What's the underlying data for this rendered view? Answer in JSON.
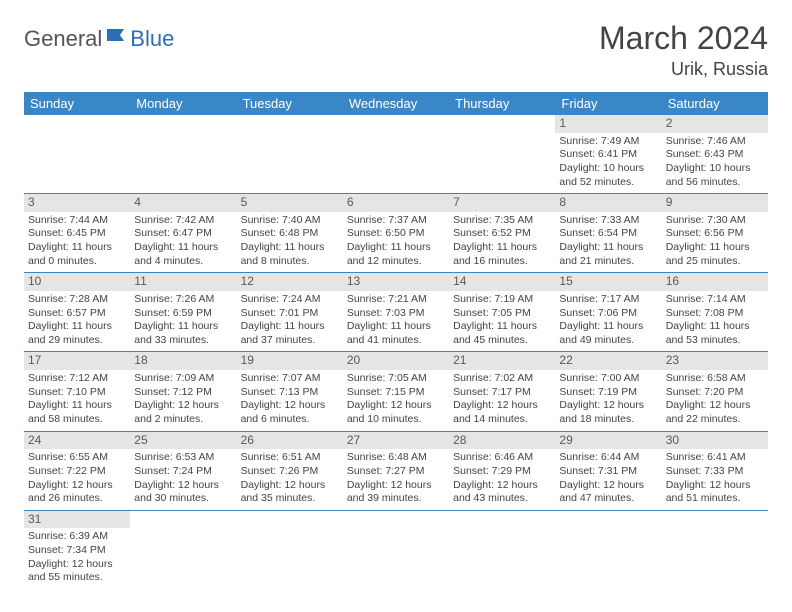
{
  "logo": {
    "text1": "General",
    "text2": "Blue"
  },
  "title": "March 2024",
  "location": "Urik, Russia",
  "colors": {
    "header_bg": "#3a87c7",
    "header_text": "#ffffff",
    "daynum_bg": "#e5e5e5",
    "row_divider": "#3a87c7",
    "logo_blue": "#2c6fb5"
  },
  "weekdays": [
    "Sunday",
    "Monday",
    "Tuesday",
    "Wednesday",
    "Thursday",
    "Friday",
    "Saturday"
  ],
  "weeks": [
    [
      null,
      null,
      null,
      null,
      null,
      {
        "n": "1",
        "sr": "Sunrise: 7:49 AM",
        "ss": "Sunset: 6:41 PM",
        "dl": "Daylight: 10 hours and 52 minutes."
      },
      {
        "n": "2",
        "sr": "Sunrise: 7:46 AM",
        "ss": "Sunset: 6:43 PM",
        "dl": "Daylight: 10 hours and 56 minutes."
      }
    ],
    [
      {
        "n": "3",
        "sr": "Sunrise: 7:44 AM",
        "ss": "Sunset: 6:45 PM",
        "dl": "Daylight: 11 hours and 0 minutes."
      },
      {
        "n": "4",
        "sr": "Sunrise: 7:42 AM",
        "ss": "Sunset: 6:47 PM",
        "dl": "Daylight: 11 hours and 4 minutes."
      },
      {
        "n": "5",
        "sr": "Sunrise: 7:40 AM",
        "ss": "Sunset: 6:48 PM",
        "dl": "Daylight: 11 hours and 8 minutes."
      },
      {
        "n": "6",
        "sr": "Sunrise: 7:37 AM",
        "ss": "Sunset: 6:50 PM",
        "dl": "Daylight: 11 hours and 12 minutes."
      },
      {
        "n": "7",
        "sr": "Sunrise: 7:35 AM",
        "ss": "Sunset: 6:52 PM",
        "dl": "Daylight: 11 hours and 16 minutes."
      },
      {
        "n": "8",
        "sr": "Sunrise: 7:33 AM",
        "ss": "Sunset: 6:54 PM",
        "dl": "Daylight: 11 hours and 21 minutes."
      },
      {
        "n": "9",
        "sr": "Sunrise: 7:30 AM",
        "ss": "Sunset: 6:56 PM",
        "dl": "Daylight: 11 hours and 25 minutes."
      }
    ],
    [
      {
        "n": "10",
        "sr": "Sunrise: 7:28 AM",
        "ss": "Sunset: 6:57 PM",
        "dl": "Daylight: 11 hours and 29 minutes."
      },
      {
        "n": "11",
        "sr": "Sunrise: 7:26 AM",
        "ss": "Sunset: 6:59 PM",
        "dl": "Daylight: 11 hours and 33 minutes."
      },
      {
        "n": "12",
        "sr": "Sunrise: 7:24 AM",
        "ss": "Sunset: 7:01 PM",
        "dl": "Daylight: 11 hours and 37 minutes."
      },
      {
        "n": "13",
        "sr": "Sunrise: 7:21 AM",
        "ss": "Sunset: 7:03 PM",
        "dl": "Daylight: 11 hours and 41 minutes."
      },
      {
        "n": "14",
        "sr": "Sunrise: 7:19 AM",
        "ss": "Sunset: 7:05 PM",
        "dl": "Daylight: 11 hours and 45 minutes."
      },
      {
        "n": "15",
        "sr": "Sunrise: 7:17 AM",
        "ss": "Sunset: 7:06 PM",
        "dl": "Daylight: 11 hours and 49 minutes."
      },
      {
        "n": "16",
        "sr": "Sunrise: 7:14 AM",
        "ss": "Sunset: 7:08 PM",
        "dl": "Daylight: 11 hours and 53 minutes."
      }
    ],
    [
      {
        "n": "17",
        "sr": "Sunrise: 7:12 AM",
        "ss": "Sunset: 7:10 PM",
        "dl": "Daylight: 11 hours and 58 minutes."
      },
      {
        "n": "18",
        "sr": "Sunrise: 7:09 AM",
        "ss": "Sunset: 7:12 PM",
        "dl": "Daylight: 12 hours and 2 minutes."
      },
      {
        "n": "19",
        "sr": "Sunrise: 7:07 AM",
        "ss": "Sunset: 7:13 PM",
        "dl": "Daylight: 12 hours and 6 minutes."
      },
      {
        "n": "20",
        "sr": "Sunrise: 7:05 AM",
        "ss": "Sunset: 7:15 PM",
        "dl": "Daylight: 12 hours and 10 minutes."
      },
      {
        "n": "21",
        "sr": "Sunrise: 7:02 AM",
        "ss": "Sunset: 7:17 PM",
        "dl": "Daylight: 12 hours and 14 minutes."
      },
      {
        "n": "22",
        "sr": "Sunrise: 7:00 AM",
        "ss": "Sunset: 7:19 PM",
        "dl": "Daylight: 12 hours and 18 minutes."
      },
      {
        "n": "23",
        "sr": "Sunrise: 6:58 AM",
        "ss": "Sunset: 7:20 PM",
        "dl": "Daylight: 12 hours and 22 minutes."
      }
    ],
    [
      {
        "n": "24",
        "sr": "Sunrise: 6:55 AM",
        "ss": "Sunset: 7:22 PM",
        "dl": "Daylight: 12 hours and 26 minutes."
      },
      {
        "n": "25",
        "sr": "Sunrise: 6:53 AM",
        "ss": "Sunset: 7:24 PM",
        "dl": "Daylight: 12 hours and 30 minutes."
      },
      {
        "n": "26",
        "sr": "Sunrise: 6:51 AM",
        "ss": "Sunset: 7:26 PM",
        "dl": "Daylight: 12 hours and 35 minutes."
      },
      {
        "n": "27",
        "sr": "Sunrise: 6:48 AM",
        "ss": "Sunset: 7:27 PM",
        "dl": "Daylight: 12 hours and 39 minutes."
      },
      {
        "n": "28",
        "sr": "Sunrise: 6:46 AM",
        "ss": "Sunset: 7:29 PM",
        "dl": "Daylight: 12 hours and 43 minutes."
      },
      {
        "n": "29",
        "sr": "Sunrise: 6:44 AM",
        "ss": "Sunset: 7:31 PM",
        "dl": "Daylight: 12 hours and 47 minutes."
      },
      {
        "n": "30",
        "sr": "Sunrise: 6:41 AM",
        "ss": "Sunset: 7:33 PM",
        "dl": "Daylight: 12 hours and 51 minutes."
      }
    ],
    [
      {
        "n": "31",
        "sr": "Sunrise: 6:39 AM",
        "ss": "Sunset: 7:34 PM",
        "dl": "Daylight: 12 hours and 55 minutes."
      },
      null,
      null,
      null,
      null,
      null,
      null
    ]
  ]
}
